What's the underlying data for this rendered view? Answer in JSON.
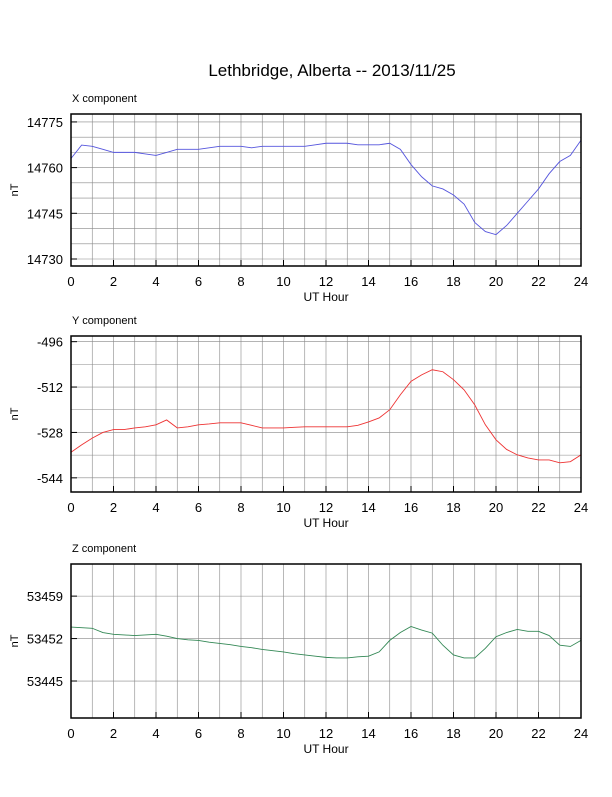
{
  "title": "Lethbridge, Alberta -- 2013/11/25",
  "chart_data": [
    {
      "type": "line",
      "title": "X component",
      "xlabel": "UT Hour",
      "ylabel": "nT",
      "x": [
        0,
        0.5,
        1,
        1.5,
        2,
        2.5,
        3,
        3.5,
        4,
        4.5,
        5,
        5.5,
        6,
        6.5,
        7,
        7.5,
        8,
        8.5,
        9,
        9.5,
        10,
        10.5,
        11,
        11.5,
        12,
        12.5,
        13,
        13.5,
        14,
        14.5,
        15,
        15.5,
        16,
        16.5,
        17,
        17.5,
        18,
        18.5,
        19,
        19.5,
        20,
        20.5,
        21,
        21.5,
        22,
        22.5,
        23,
        23.5,
        24
      ],
      "series": [
        {
          "name": "X",
          "color": "#5555dd",
          "values": [
            14763,
            14767.4,
            14767,
            14766,
            14765,
            14765,
            14765,
            14764.5,
            14764,
            14765,
            14766,
            14766,
            14766,
            14766.5,
            14767,
            14767,
            14767,
            14766.5,
            14767,
            14767,
            14767,
            14767,
            14767,
            14767.5,
            14768,
            14768,
            14768,
            14767.5,
            14767.5,
            14767.5,
            14768,
            14766,
            14761,
            14757,
            14754,
            14753,
            14751,
            14748,
            14742,
            14739,
            14738,
            14741,
            14745,
            14749,
            14753,
            14758,
            14762,
            14764,
            14769
          ]
        }
      ],
      "xlim": [
        0,
        24
      ],
      "xticks": [
        0,
        2,
        4,
        6,
        8,
        10,
        12,
        14,
        16,
        18,
        20,
        22,
        24
      ],
      "xgrid": [
        0,
        1,
        2,
        3,
        4,
        5,
        6,
        7,
        8,
        9,
        10,
        11,
        12,
        13,
        14,
        15,
        16,
        17,
        18,
        19,
        20,
        21,
        22,
        23,
        24
      ],
      "ylim": [
        14727.7,
        14777.6
      ],
      "yticks": [
        14730,
        14745,
        14760,
        14775
      ],
      "ygrid": [
        14730,
        14735,
        14740,
        14745,
        14750,
        14755,
        14760,
        14765,
        14770,
        14775
      ]
    },
    {
      "type": "line",
      "title": "Y component",
      "xlabel": "UT Hour",
      "ylabel": "nT",
      "x": [
        0,
        0.5,
        1,
        1.5,
        2,
        2.5,
        3,
        3.5,
        4,
        4.5,
        5,
        5.5,
        6,
        6.5,
        7,
        7.5,
        8,
        8.5,
        9,
        9.5,
        10,
        10.5,
        11,
        11.5,
        12,
        12.5,
        13,
        13.5,
        14,
        14.5,
        15,
        15.5,
        16,
        16.5,
        17,
        17.5,
        18,
        18.5,
        19,
        19.5,
        20,
        20.5,
        21,
        21.5,
        22,
        22.5,
        23,
        23.5,
        24
      ],
      "series": [
        {
          "name": "Y",
          "color": "#ee3333",
          "values": [
            -535,
            -532.4,
            -530,
            -528,
            -527,
            -527,
            -526.4,
            -526,
            -525.3,
            -523.6,
            -526.4,
            -526,
            -525.3,
            -525,
            -524.6,
            -524.6,
            -524.6,
            -525.5,
            -526.4,
            -526.4,
            -526.4,
            -526.2,
            -526,
            -526,
            -526,
            -526,
            -526,
            -525.5,
            -524.3,
            -522.9,
            -520,
            -514.7,
            -510,
            -507.7,
            -505.9,
            -506.6,
            -509.4,
            -513,
            -518.3,
            -525.3,
            -530.6,
            -534,
            -535.9,
            -537,
            -537.7,
            -537.7,
            -538.7,
            -538.3,
            -535.9
          ]
        }
      ],
      "xlim": [
        0,
        24
      ],
      "xticks": [
        0,
        2,
        4,
        6,
        8,
        10,
        12,
        14,
        16,
        18,
        20,
        22,
        24
      ],
      "xgrid": [
        0,
        1,
        2,
        3,
        4,
        5,
        6,
        7,
        8,
        9,
        10,
        11,
        12,
        13,
        14,
        15,
        16,
        17,
        18,
        19,
        20,
        21,
        22,
        23,
        24
      ],
      "ylim": [
        -549,
        -494
      ],
      "yticks": [
        -544,
        -528,
        -512,
        -496
      ],
      "ygrid": [
        -544,
        -536,
        -528,
        -520,
        -512,
        -504,
        -496
      ]
    },
    {
      "type": "line",
      "title": "Z component",
      "xlabel": "UT Hour",
      "ylabel": "nT",
      "x": [
        0,
        0.5,
        1,
        1.5,
        2,
        2.5,
        3,
        3.5,
        4,
        4.5,
        5,
        5.5,
        6,
        6.5,
        7,
        7.5,
        8,
        8.5,
        9,
        9.5,
        10,
        10.5,
        11,
        11.5,
        12,
        12.5,
        13,
        13.5,
        14,
        14.5,
        15,
        15.5,
        16,
        16.5,
        17,
        17.5,
        18,
        18.5,
        19,
        19.5,
        20,
        20.5,
        21,
        21.5,
        22,
        22.5,
        23,
        23.5,
        24
      ],
      "series": [
        {
          "name": "Z",
          "color": "#338855",
          "values": [
            53453.9,
            53453.8,
            53453.7,
            53453,
            53452.7,
            53452.6,
            53452.5,
            53452.6,
            53452.7,
            53452.4,
            53452,
            53451.8,
            53451.7,
            53451.4,
            53451.2,
            53451,
            53450.7,
            53450.5,
            53450.2,
            53450,
            53449.8,
            53449.5,
            53449.3,
            53449.1,
            53448.9,
            53448.8,
            53448.8,
            53449,
            53449.1,
            53449.8,
            53451.7,
            53453,
            53454,
            53453.4,
            53452.9,
            53450.9,
            53449.3,
            53448.8,
            53448.8,
            53450.4,
            53452.3,
            53453,
            53453.5,
            53453.2,
            53453.2,
            53452.5,
            53450.9,
            53450.7,
            53451.7
          ]
        }
      ],
      "xlim": [
        0,
        24
      ],
      "xticks": [
        0,
        2,
        4,
        6,
        8,
        10,
        12,
        14,
        16,
        18,
        20,
        22,
        24
      ],
      "xgrid": [
        0,
        1,
        2,
        3,
        4,
        5,
        6,
        7,
        8,
        9,
        10,
        11,
        12,
        13,
        14,
        15,
        16,
        17,
        18,
        19,
        20,
        21,
        22,
        23,
        24
      ],
      "ylim": [
        53438.9,
        53464.3
      ],
      "yticks": [
        53445,
        53452,
        53459
      ],
      "ygrid": [
        53445,
        53452,
        53459
      ]
    }
  ]
}
